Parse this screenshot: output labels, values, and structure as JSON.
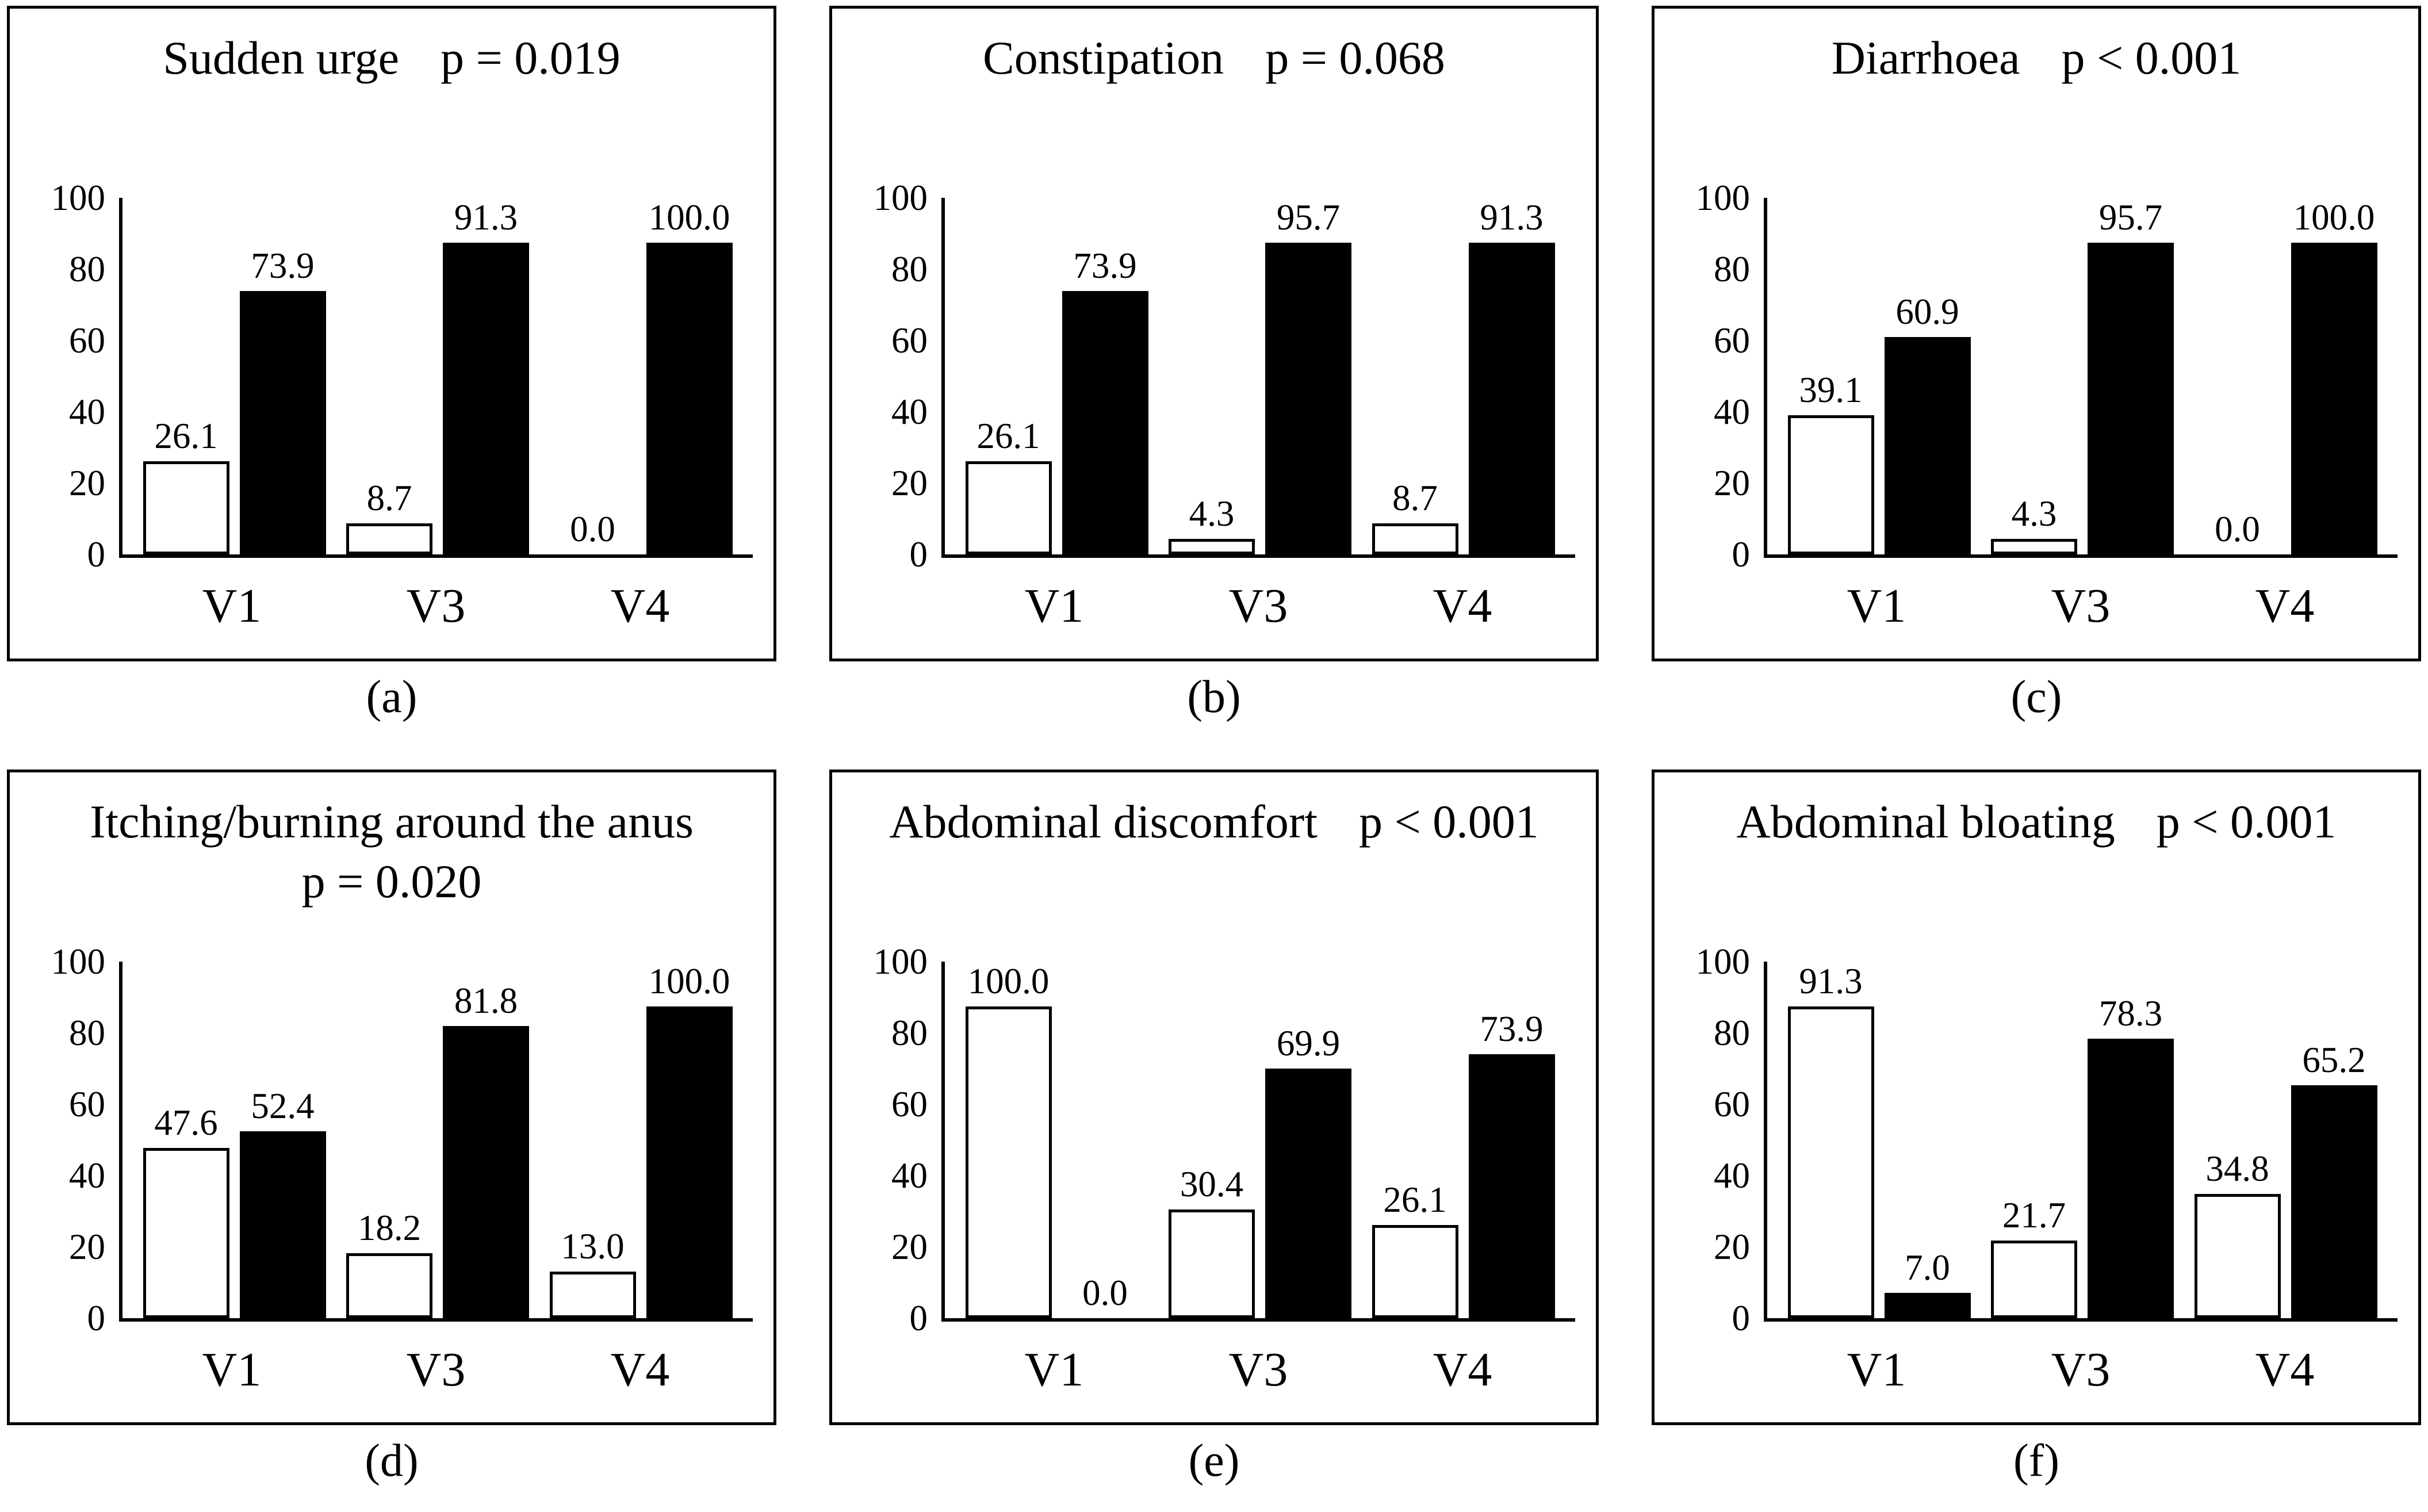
{
  "figure": {
    "background": "#ffffff",
    "axis_color": "#000000",
    "bar_outline_color": "#000000",
    "white_bar_fill": "#ffffff",
    "black_bar_fill": "#000000",
    "categories": [
      "V1",
      "V3",
      "V4"
    ],
    "yticks": [
      0,
      20,
      40,
      60,
      80,
      100
    ],
    "ylim": [
      0,
      100
    ],
    "grid": "off",
    "legend": "none"
  },
  "chart_data": [
    {
      "type": "bar",
      "caption": "(a)",
      "title": "Sudden urge",
      "p_label": "p = 0.019",
      "two_line_title": false,
      "categories": [
        "V1",
        "V3",
        "V4"
      ],
      "ylim": [
        0,
        100
      ],
      "yticks": [
        0,
        20,
        40,
        60,
        80,
        100
      ],
      "series": [
        {
          "name": "white_bars",
          "fill": "#ffffff",
          "values": [
            26.1,
            8.7,
            0.0
          ],
          "labels": [
            "26.1",
            "8.7",
            "0.0"
          ]
        },
        {
          "name": "black_bars",
          "fill": "#000000",
          "values": [
            73.9,
            91.3,
            100.0
          ],
          "labels": [
            "73.9",
            "91.3",
            "100.0"
          ]
        }
      ]
    },
    {
      "type": "bar",
      "caption": "(b)",
      "title": "Constipation",
      "p_label": "p = 0.068",
      "two_line_title": false,
      "categories": [
        "V1",
        "V3",
        "V4"
      ],
      "ylim": [
        0,
        100
      ],
      "yticks": [
        0,
        20,
        40,
        60,
        80,
        100
      ],
      "series": [
        {
          "name": "white_bars",
          "fill": "#ffffff",
          "values": [
            26.1,
            4.3,
            8.7
          ],
          "labels": [
            "26.1",
            "4.3",
            "8.7"
          ]
        },
        {
          "name": "black_bars",
          "fill": "#000000",
          "values": [
            73.9,
            95.7,
            91.3
          ],
          "labels": [
            "73.9",
            "95.7",
            "91.3"
          ]
        }
      ]
    },
    {
      "type": "bar",
      "caption": "(c)",
      "title": "Diarrhoea",
      "p_label": "p < 0.001",
      "two_line_title": false,
      "categories": [
        "V1",
        "V3",
        "V4"
      ],
      "ylim": [
        0,
        100
      ],
      "yticks": [
        0,
        20,
        40,
        60,
        80,
        100
      ],
      "series": [
        {
          "name": "white_bars",
          "fill": "#ffffff",
          "values": [
            39.1,
            4.3,
            0.0
          ],
          "labels": [
            "39.1",
            "4.3",
            "0.0"
          ]
        },
        {
          "name": "black_bars",
          "fill": "#000000",
          "values": [
            60.9,
            95.7,
            100.0
          ],
          "labels": [
            "60.9",
            "95.7",
            "100.0"
          ]
        }
      ]
    },
    {
      "type": "bar",
      "caption": "(d)",
      "title": "Itching/burning around the anus",
      "p_label": "p = 0.020",
      "two_line_title": true,
      "categories": [
        "V1",
        "V3",
        "V4"
      ],
      "ylim": [
        0,
        100
      ],
      "yticks": [
        0,
        20,
        40,
        60,
        80,
        100
      ],
      "series": [
        {
          "name": "white_bars",
          "fill": "#ffffff",
          "values": [
            47.6,
            18.2,
            13.0
          ],
          "labels": [
            "47.6",
            "18.2",
            "13.0"
          ]
        },
        {
          "name": "black_bars",
          "fill": "#000000",
          "values": [
            52.4,
            81.8,
            100.0
          ],
          "labels": [
            "52.4",
            "81.8",
            "100.0"
          ]
        }
      ]
    },
    {
      "type": "bar",
      "caption": "(e)",
      "title": "Abdominal discomfort",
      "p_label": "p < 0.001",
      "two_line_title": false,
      "categories": [
        "V1",
        "V3",
        "V4"
      ],
      "ylim": [
        0,
        100
      ],
      "yticks": [
        0,
        20,
        40,
        60,
        80,
        100
      ],
      "series": [
        {
          "name": "white_bars",
          "fill": "#ffffff",
          "values": [
            100.0,
            30.4,
            26.1
          ],
          "labels": [
            "100.0",
            "30.4",
            "26.1"
          ]
        },
        {
          "name": "black_bars",
          "fill": "#000000",
          "values": [
            0.0,
            69.9,
            73.9
          ],
          "labels": [
            "0.0",
            "69.9",
            "73.9"
          ]
        }
      ]
    },
    {
      "type": "bar",
      "caption": "(f)",
      "title": "Abdominal bloating",
      "p_label": "p < 0.001",
      "two_line_title": false,
      "categories": [
        "V1",
        "V3",
        "V4"
      ],
      "ylim": [
        0,
        100
      ],
      "yticks": [
        0,
        20,
        40,
        60,
        80,
        100
      ],
      "series": [
        {
          "name": "white_bars",
          "fill": "#ffffff",
          "values": [
            91.3,
            21.7,
            34.8
          ],
          "labels": [
            "91.3",
            "21.7",
            "34.8"
          ]
        },
        {
          "name": "black_bars",
          "fill": "#000000",
          "values": [
            7.0,
            78.3,
            65.2
          ],
          "labels": [
            "7.0",
            "78.3",
            "65.2"
          ]
        }
      ]
    }
  ]
}
